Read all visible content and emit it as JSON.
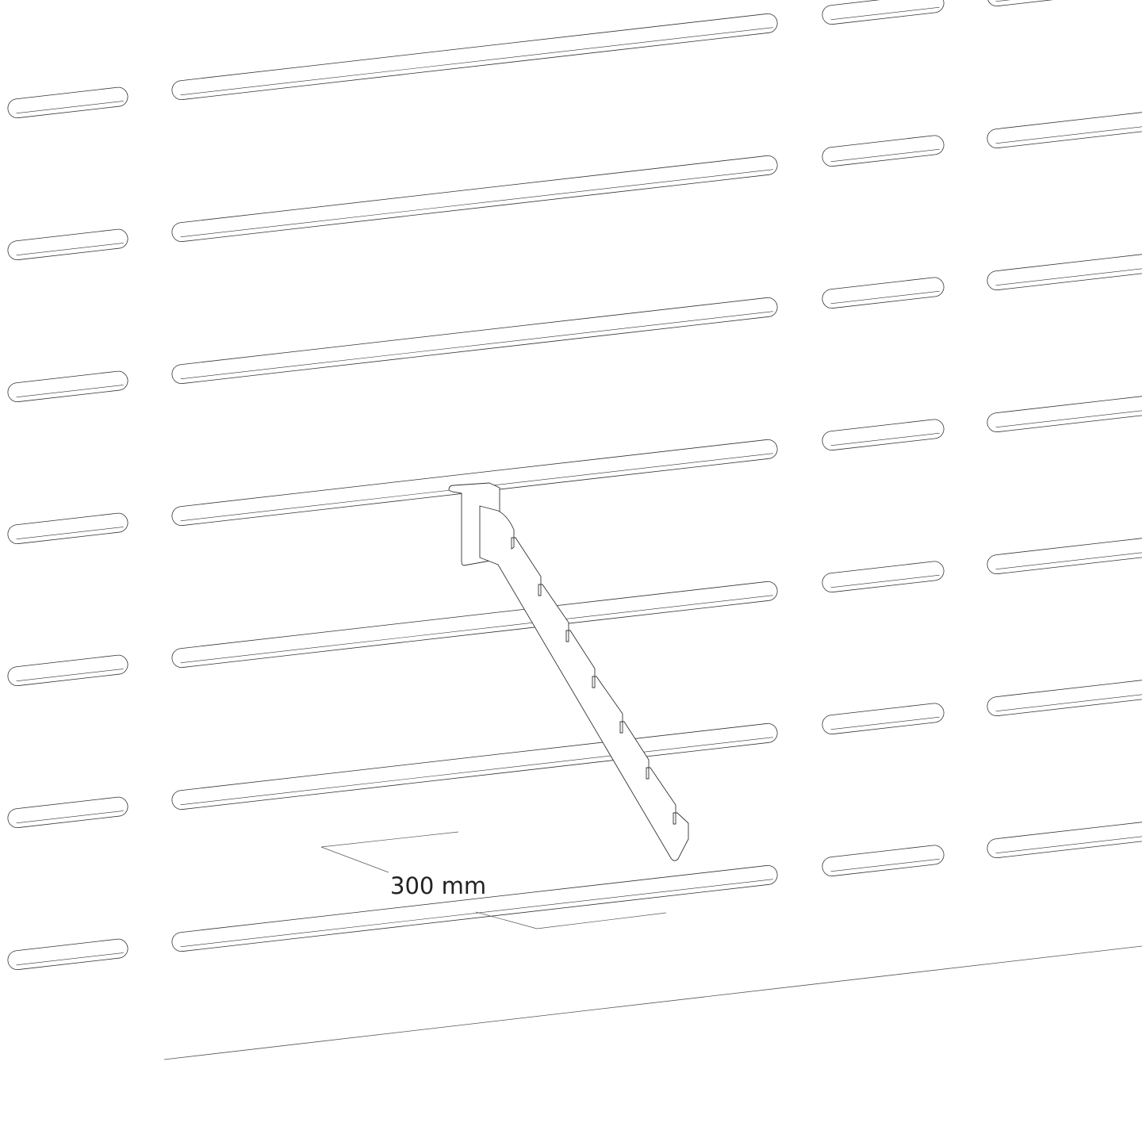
{
  "drawing": {
    "dimension_label": "300 mm",
    "line_color": "#333333",
    "background": "#ffffff"
  }
}
